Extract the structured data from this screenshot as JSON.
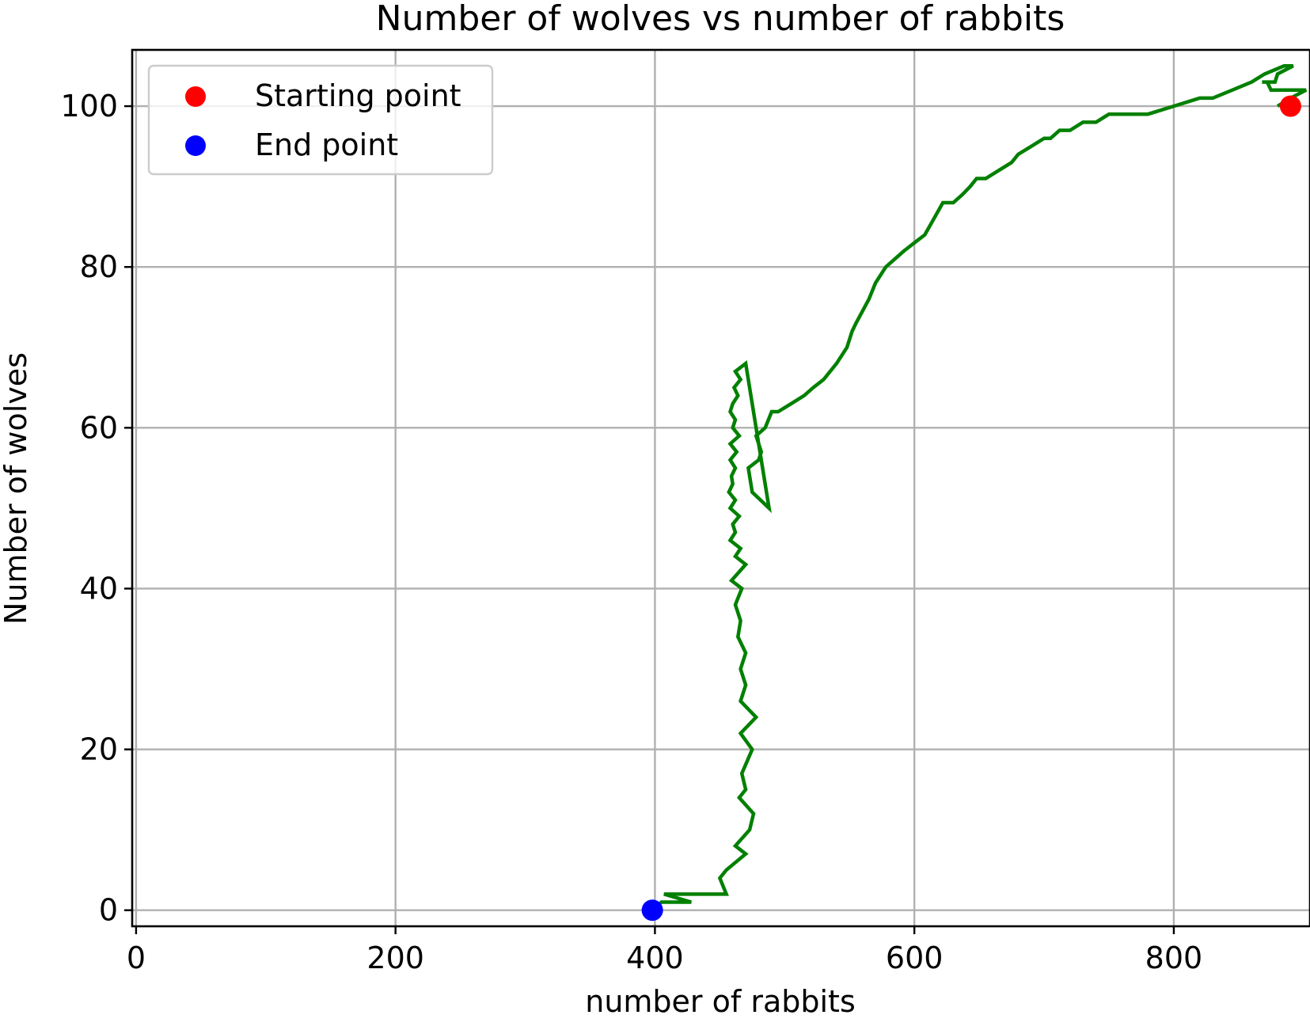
{
  "chart_data": {
    "type": "line",
    "title": "Number of wolves vs number of rabbits",
    "xlabel": "number of rabbits",
    "ylabel": "Number of wolves",
    "xlim": [
      -3,
      905
    ],
    "ylim": [
      -2,
      107
    ],
    "xticks": [
      0,
      200,
      400,
      600,
      800
    ],
    "yticks": [
      0,
      20,
      40,
      60,
      80,
      100
    ],
    "grid": true,
    "legend_position": "top-left",
    "series": [
      {
        "kind": "line",
        "color": "#008000",
        "x": [
          398,
          405,
          428,
          407,
          455,
          450,
          455,
          470,
          462,
          473,
          476,
          465,
          470,
          467,
          475,
          466,
          478,
          466,
          470,
          466,
          470,
          464,
          466,
          462,
          467,
          459,
          470,
          462,
          466,
          458,
          462,
          460,
          465,
          458,
          462,
          457,
          460,
          459,
          462,
          458,
          463,
          458,
          465,
          460,
          462,
          458,
          460,
          464,
          461,
          466,
          462,
          470,
          488,
          475,
          472,
          480,
          482,
          478,
          485,
          490,
          492,
          490,
          495,
          505,
          515,
          522,
          530,
          540,
          548,
          552,
          555,
          565,
          570,
          578,
          585,
          592,
          600,
          608,
          615,
          622,
          630,
          637,
          643,
          648,
          655,
          665,
          675,
          680,
          690,
          700,
          705,
          712,
          720,
          730,
          740,
          750,
          760,
          770,
          780,
          800,
          820,
          830,
          845,
          860,
          870,
          885,
          892,
          880,
          878,
          868,
          872,
          875,
          902,
          890,
          880
        ],
        "y": [
          0,
          1,
          1,
          2,
          2,
          4,
          5,
          7,
          8,
          10,
          12,
          14,
          15,
          17,
          20,
          22,
          24,
          26,
          28,
          30,
          32,
          34,
          36,
          38,
          40,
          41,
          43,
          44,
          45,
          46,
          47,
          48,
          49,
          50,
          51,
          52,
          53,
          54,
          55,
          56,
          57,
          58,
          59,
          60,
          61,
          62,
          63,
          64,
          65,
          66,
          67,
          68,
          50,
          52,
          55,
          56,
          57,
          59,
          60,
          62,
          62,
          62,
          62,
          63,
          64,
          65,
          66,
          68,
          70,
          72,
          73,
          76,
          78,
          80,
          81,
          82,
          83,
          84,
          86,
          88,
          88,
          89,
          90,
          91,
          91,
          92,
          93,
          94,
          95,
          96,
          96,
          97,
          97,
          98,
          98,
          99,
          99,
          99,
          99,
          100,
          101,
          101,
          102,
          103,
          104,
          105,
          105,
          104,
          103,
          103,
          103,
          102,
          102,
          101,
          100
        ]
      }
    ],
    "points": [
      {
        "name": "Starting point",
        "x": 890,
        "y": 100,
        "color": "#ff0000"
      },
      {
        "name": "End point",
        "x": 398,
        "y": 0,
        "color": "#0000ff"
      }
    ]
  }
}
